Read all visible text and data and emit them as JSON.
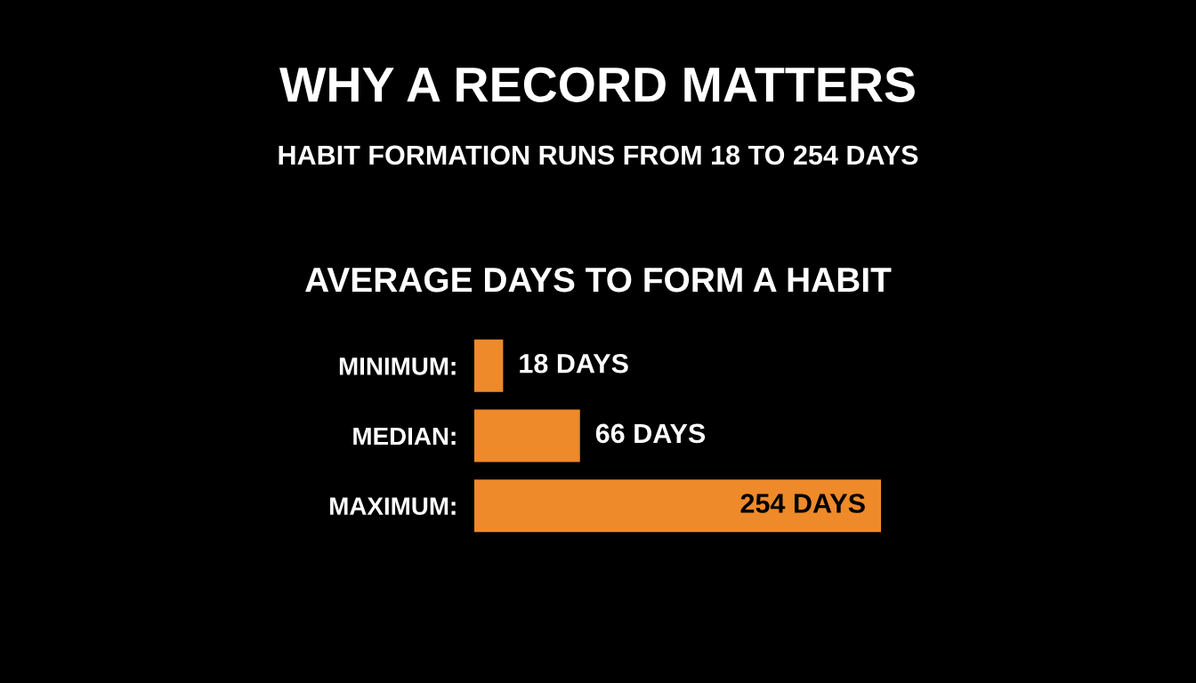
{
  "chart_data": {
    "type": "bar",
    "orientation": "horizontal",
    "title": "WHY A RECORD MATTERS",
    "subtitle": "HABIT FORMATION RUNS FROM 18 TO 254 DAYS",
    "annotations": [
      "AVERAGE DAYS TO FORM A HABIT"
    ],
    "categories": [
      "MINIMUM",
      "MEDIAN",
      "MAXIMUM"
    ],
    "values": [
      18,
      66,
      254
    ],
    "value_labels": [
      "18 DAYS",
      "66 DAYS",
      "254 DAYS"
    ],
    "color": "#ee8a2a",
    "tick_labels": "y",
    "grid": false
  }
}
